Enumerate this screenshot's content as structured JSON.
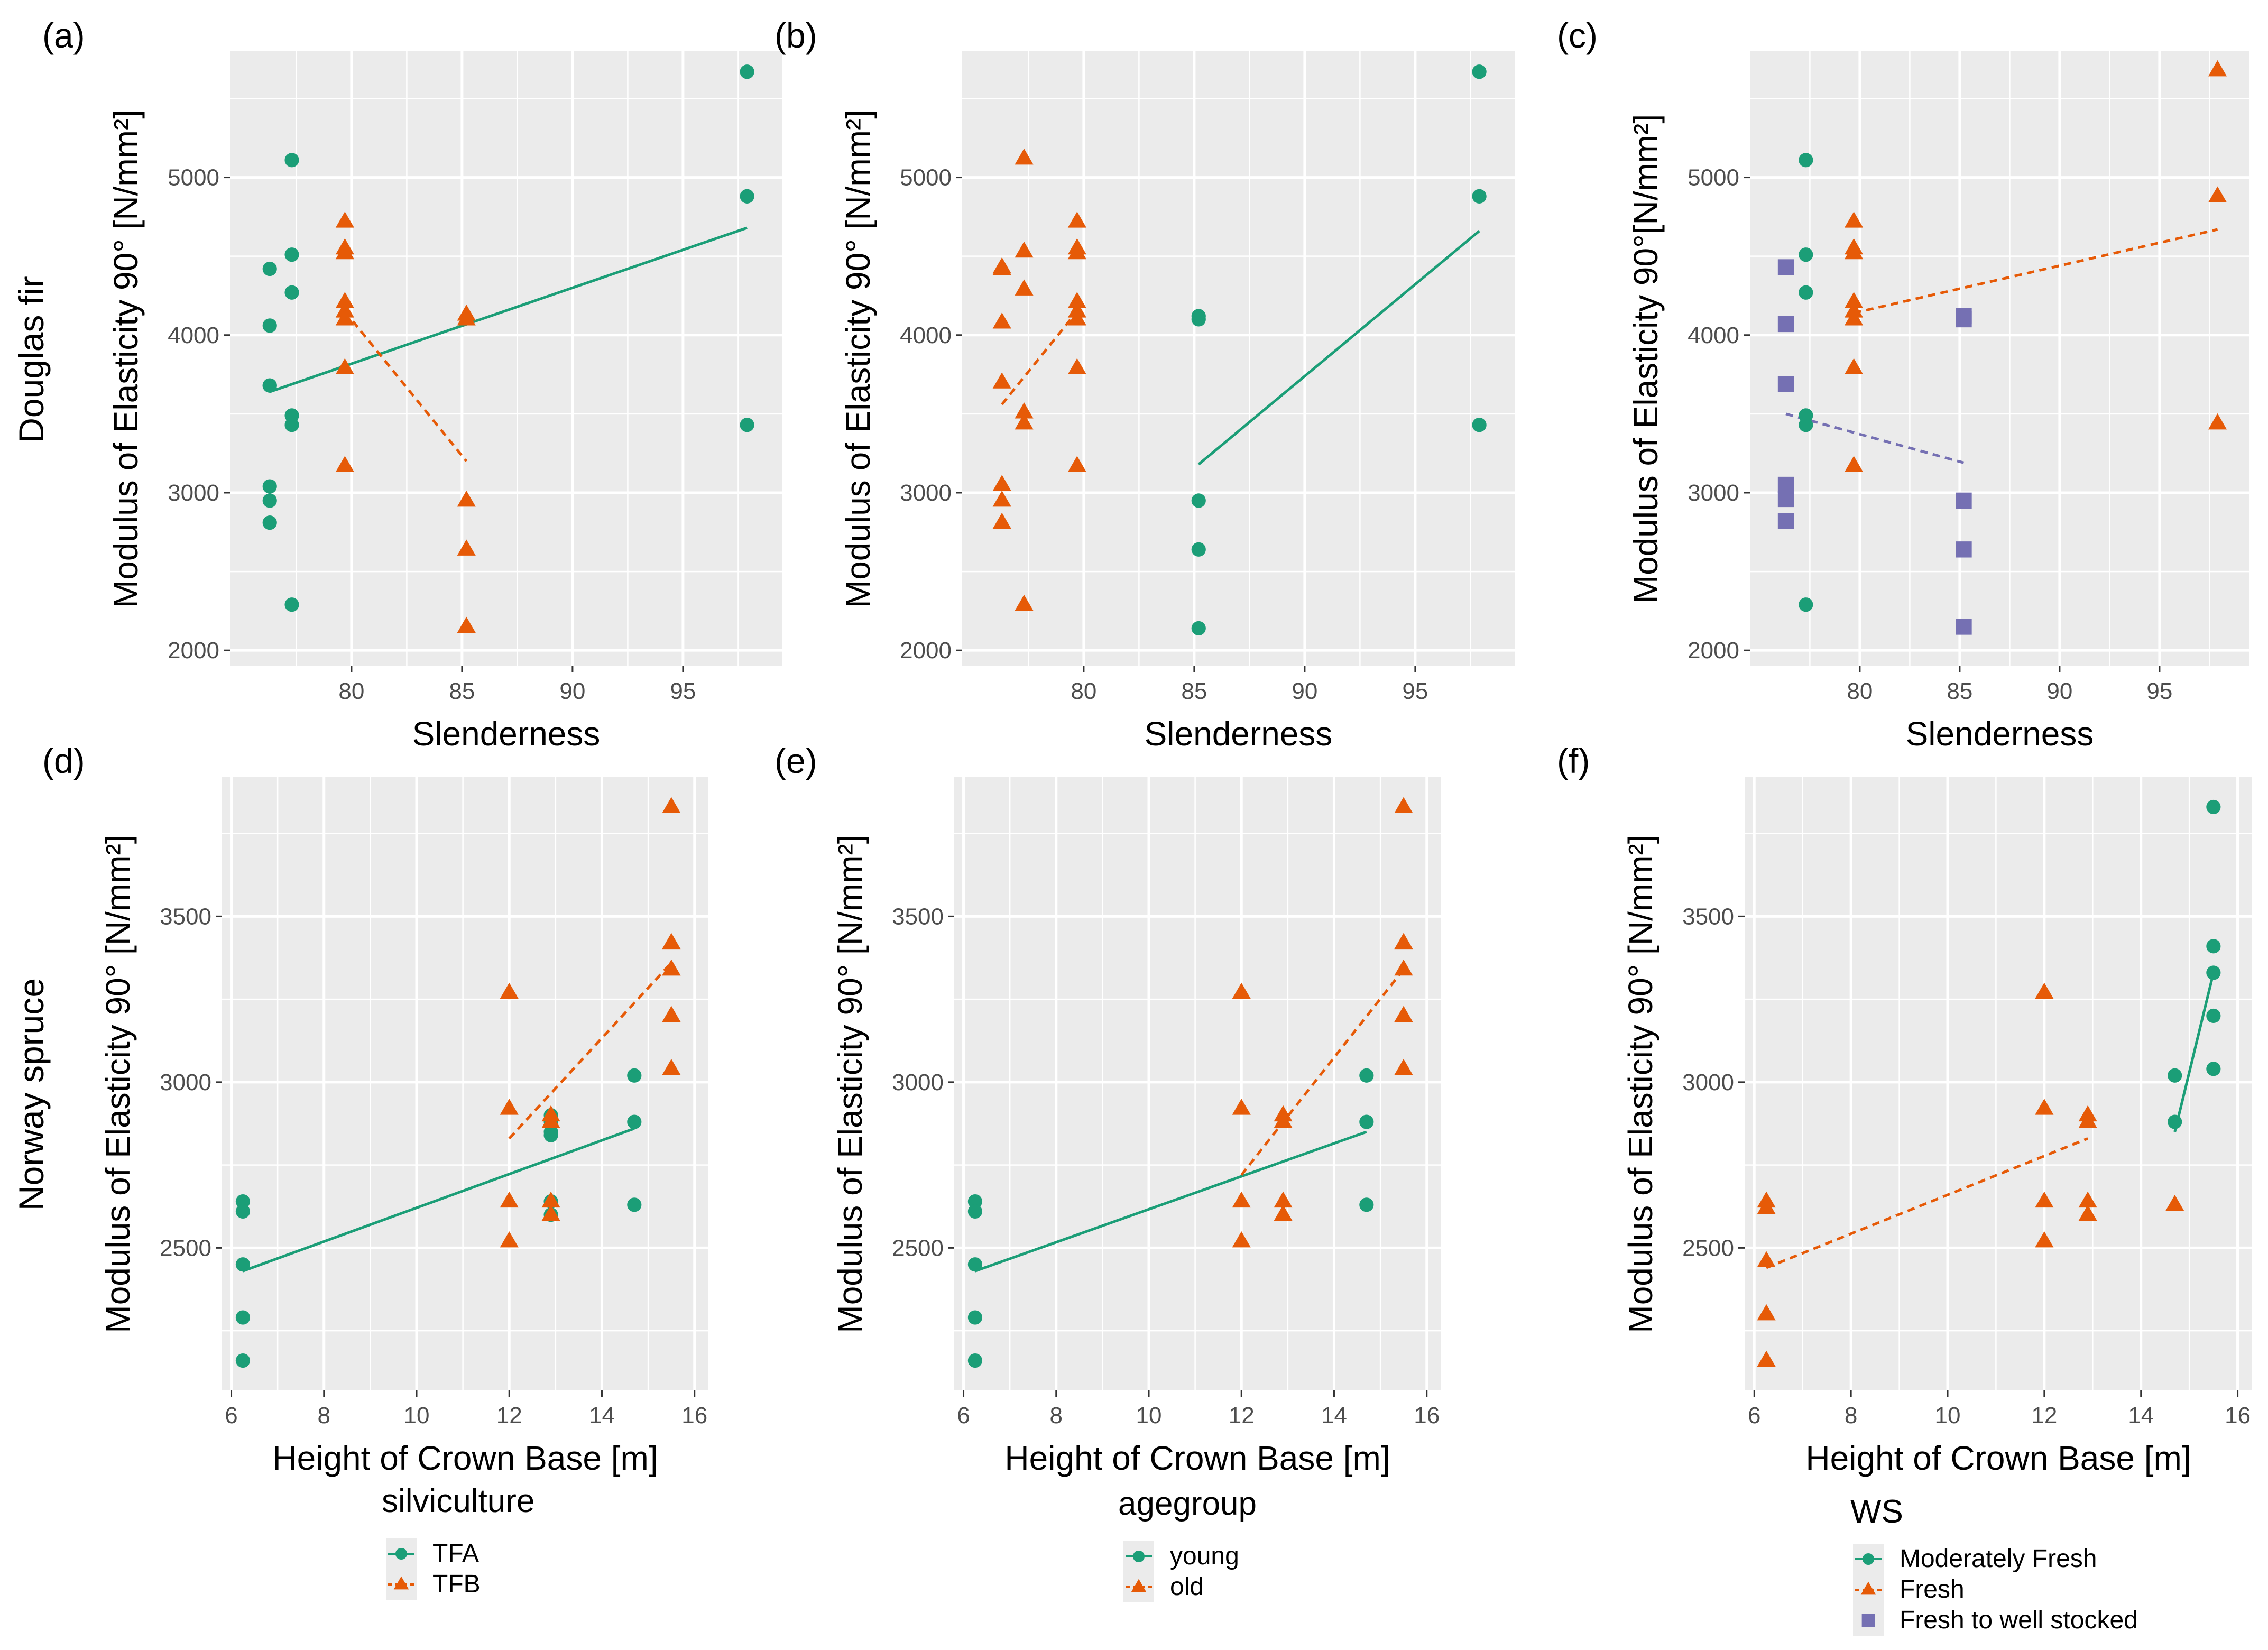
{
  "colors": {
    "teal": "#1b9e77",
    "orange": "#e65a07",
    "purple": "#7570b3"
  },
  "row_labels": [
    "Douglas fir",
    "Norway spruce"
  ],
  "chart_data": [
    {
      "panel": "(a)",
      "type": "scatter",
      "xlabel": "Slenderness",
      "ylabel": "Modulus of Elasticity 90° [N/mm²]",
      "xlim": [
        74.5,
        99.5
      ],
      "ylim": [
        1900,
        5800
      ],
      "xticks": [
        80,
        85,
        90,
        95
      ],
      "yticks": [
        2000,
        3000,
        4000,
        5000
      ],
      "xticklabels": [
        "80",
        "85",
        "90",
        "95"
      ],
      "yticklabels": [
        "2000",
        "3000",
        "4000",
        "5000"
      ],
      "series": [
        {
          "name": "TFA",
          "shape": "circle",
          "line": "solid",
          "x": [
            76.3,
            76.3,
            76.3,
            76.3,
            76.3,
            76.3,
            76.3,
            77.3,
            77.3,
            77.3,
            77.3,
            77.3,
            77.3,
            97.9,
            97.9,
            97.9
          ],
          "y": [
            4420,
            4060,
            3680,
            3040,
            2950,
            2810,
            3680,
            5110,
            4510,
            4270,
            3490,
            3430,
            2290,
            5670,
            4880,
            3430
          ],
          "fit": [
            [
              76.3,
              3640
            ],
            [
              97.9,
              4680
            ]
          ]
        },
        {
          "name": "TFB",
          "shape": "triangle",
          "line": "dashed",
          "x": [
            79.7,
            79.7,
            79.7,
            79.7,
            79.7,
            79.7,
            79.7,
            79.7,
            85.2,
            85.2,
            85.2,
            85.2,
            85.2
          ],
          "y": [
            4720,
            4550,
            4520,
            4210,
            4150,
            4100,
            3790,
            3170,
            4130,
            4100,
            2950,
            2640,
            2150
          ],
          "fit": [
            [
              79.7,
              4150
            ],
            [
              85.2,
              3200
            ]
          ]
        }
      ]
    },
    {
      "panel": "(b)",
      "type": "scatter",
      "xlabel": "Slenderness",
      "ylabel": "Modulus of Elasticity 90° [N/mm²]",
      "xlim": [
        74.5,
        99.5
      ],
      "ylim": [
        1900,
        5800
      ],
      "xticks": [
        80,
        85,
        90,
        95
      ],
      "yticks": [
        2000,
        3000,
        4000,
        5000
      ],
      "xticklabels": [
        "80",
        "85",
        "90",
        "95"
      ],
      "yticklabels": [
        "2000",
        "3000",
        "4000",
        "5000"
      ],
      "series": [
        {
          "name": "young",
          "shape": "circle",
          "line": "solid",
          "x": [
            85.2,
            85.2,
            85.2,
            85.2,
            85.2,
            97.9,
            97.9,
            97.9
          ],
          "y": [
            4120,
            4100,
            2950,
            2640,
            2140,
            5670,
            4880,
            3430
          ],
          "fit": [
            [
              85.2,
              3180
            ],
            [
              97.9,
              4660
            ]
          ]
        },
        {
          "name": "old",
          "shape": "triangle",
          "line": "dashed",
          "x": [
            76.3,
            76.3,
            76.3,
            76.3,
            76.3,
            76.3,
            76.3,
            77.3,
            77.3,
            77.3,
            77.3,
            77.3,
            77.3,
            79.7,
            79.7,
            79.7,
            79.7,
            79.7,
            79.7,
            79.7,
            79.7
          ],
          "y": [
            4430,
            4080,
            3700,
            3050,
            2950,
            2810,
            4420,
            5120,
            4530,
            4290,
            3510,
            3440,
            2290,
            4720,
            4550,
            4520,
            4210,
            4150,
            4100,
            3790,
            3170
          ],
          "fit": [
            [
              76.3,
              3560
            ],
            [
              79.7,
              4150
            ]
          ]
        }
      ]
    },
    {
      "panel": "(c)",
      "type": "scatter",
      "xlabel": "Slenderness",
      "ylabel": "Modulus of Elasticity 90°[N/mm²]",
      "xlim": [
        74.5,
        99.5
      ],
      "ylim": [
        1900,
        5800
      ],
      "xticks": [
        80,
        85,
        90,
        95
      ],
      "yticks": [
        2000,
        3000,
        4000,
        5000
      ],
      "xticklabels": [
        "80",
        "85",
        "90",
        "95"
      ],
      "yticklabels": [
        "2000",
        "3000",
        "4000",
        "5000"
      ],
      "series": [
        {
          "name": "Moderately Fresh",
          "shape": "circle",
          "line": "none",
          "x": [
            77.3,
            77.3,
            77.3,
            77.3,
            77.3,
            77.3
          ],
          "y": [
            5110,
            4510,
            4270,
            3490,
            3430,
            2290
          ],
          "fit": []
        },
        {
          "name": "Fresh",
          "shape": "triangle",
          "line": "dashed",
          "x": [
            79.7,
            79.7,
            79.7,
            79.7,
            79.7,
            79.7,
            79.7,
            79.7,
            97.9,
            97.9,
            97.9
          ],
          "y": [
            4720,
            4550,
            4520,
            4210,
            4150,
            4100,
            3790,
            3170,
            5680,
            4880,
            3440
          ],
          "fit": [
            [
              79.7,
              4140
            ],
            [
              97.9,
              4670
            ]
          ]
        },
        {
          "name": "Fresh to well stocked",
          "shape": "square",
          "line": "dashed",
          "x": [
            76.3,
            76.3,
            76.3,
            76.3,
            76.3,
            76.3,
            85.2,
            85.2,
            85.2,
            85.2,
            85.2
          ],
          "y": [
            4430,
            4070,
            3690,
            3050,
            2960,
            2820,
            4120,
            4100,
            2950,
            2640,
            2150
          ],
          "fit": [
            [
              76.3,
              3500
            ],
            [
              85.2,
              3190
            ]
          ]
        }
      ]
    },
    {
      "panel": "(d)",
      "type": "scatter",
      "xlabel": "Height of Crown Base [m]",
      "ylabel": "Modulus of Elasticity 90° [N/mm²]",
      "xlim": [
        5.8,
        16.3
      ],
      "ylim": [
        2070,
        3920
      ],
      "xticks": [
        6,
        8,
        10,
        12,
        14,
        16
      ],
      "yticks": [
        2500,
        3000,
        3500
      ],
      "xticklabels": [
        "6",
        "8",
        "10",
        "12",
        "14",
        "16"
      ],
      "yticklabels": [
        "2500",
        "3000",
        "3500"
      ],
      "legend": {
        "title": "silviculture",
        "items": [
          "TFA",
          "TFB"
        ]
      },
      "series": [
        {
          "name": "TFA",
          "shape": "circle",
          "line": "solid",
          "x": [
            6.25,
            6.25,
            6.25,
            6.25,
            6.25,
            12.9,
            12.9,
            12.9,
            12.9,
            12.9,
            12.9,
            14.7,
            14.7,
            14.7
          ],
          "y": [
            2640,
            2610,
            2450,
            2290,
            2160,
            2900,
            2880,
            2840,
            2640,
            2600,
            2850,
            3020,
            2880,
            2630
          ],
          "fit": [
            [
              6.25,
              2430
            ],
            [
              14.7,
              2860
            ]
          ]
        },
        {
          "name": "TFB",
          "shape": "triangle",
          "line": "dashed",
          "x": [
            12.0,
            12.0,
            12.0,
            12.0,
            12.9,
            12.9,
            12.9,
            12.9,
            15.5,
            15.5,
            15.5,
            15.5,
            15.5,
            15.5
          ],
          "y": [
            3270,
            2920,
            2640,
            2520,
            2900,
            2880,
            2640,
            2600,
            3830,
            3420,
            3340,
            3200,
            3040,
            3340
          ],
          "fit": [
            [
              12.0,
              2830
            ],
            [
              15.5,
              3360
            ]
          ]
        }
      ]
    },
    {
      "panel": "(e)",
      "type": "scatter",
      "xlabel": "Height of Crown Base [m]",
      "ylabel": "Modulus of Elasticity 90° [N/mm²]",
      "xlim": [
        5.8,
        16.3
      ],
      "ylim": [
        2070,
        3920
      ],
      "xticks": [
        6,
        8,
        10,
        12,
        14,
        16
      ],
      "yticks": [
        2500,
        3000,
        3500
      ],
      "xticklabels": [
        "6",
        "8",
        "10",
        "12",
        "14",
        "16"
      ],
      "yticklabels": [
        "2500",
        "3000",
        "3500"
      ],
      "legend": {
        "title": "agegroup",
        "items": [
          "young",
          "old"
        ]
      },
      "series": [
        {
          "name": "young",
          "shape": "circle",
          "line": "solid",
          "x": [
            6.25,
            6.25,
            6.25,
            6.25,
            6.25,
            14.7,
            14.7,
            14.7
          ],
          "y": [
            2640,
            2610,
            2450,
            2290,
            2160,
            3020,
            2880,
            2630
          ],
          "fit": [
            [
              6.25,
              2430
            ],
            [
              14.7,
              2850
            ]
          ]
        },
        {
          "name": "old",
          "shape": "triangle",
          "line": "dashed",
          "x": [
            12.0,
            12.0,
            12.0,
            12.0,
            12.9,
            12.9,
            12.9,
            12.9,
            15.5,
            15.5,
            15.5,
            15.5,
            15.5
          ],
          "y": [
            3270,
            2920,
            2640,
            2520,
            2900,
            2880,
            2640,
            2600,
            3830,
            3420,
            3340,
            3200,
            3040
          ],
          "fit": [
            [
              12.0,
              2720
            ],
            [
              15.5,
              3340
            ]
          ]
        }
      ]
    },
    {
      "panel": "(f)",
      "type": "scatter",
      "xlabel": "Height of Crown Base [m]",
      "ylabel": "Modulus of Elasticity 90° [N/mm²]",
      "xlim": [
        5.8,
        16.3
      ],
      "ylim": [
        2070,
        3920
      ],
      "xticks": [
        6,
        8,
        10,
        12,
        14,
        16
      ],
      "yticks": [
        2500,
        3000,
        3500
      ],
      "xticklabels": [
        "6",
        "8",
        "10",
        "12",
        "14",
        "16"
      ],
      "yticklabels": [
        "2500",
        "3000",
        "3500"
      ],
      "legend": {
        "title": "WS",
        "items": [
          "Moderately Fresh",
          "Fresh",
          "Fresh to well stocked"
        ]
      },
      "series": [
        {
          "name": "Moderately Fresh",
          "shape": "circle",
          "line": "solid",
          "x": [
            14.7,
            14.7,
            15.5,
            15.5,
            15.5,
            15.5,
            15.5
          ],
          "y": [
            3020,
            2880,
            3830,
            3410,
            3330,
            3200,
            3040
          ],
          "fit": [
            [
              14.7,
              2850
            ],
            [
              15.5,
              3330
            ]
          ]
        },
        {
          "name": "Fresh",
          "shape": "triangle",
          "line": "dashed",
          "x": [
            6.25,
            6.25,
            6.25,
            6.25,
            6.25,
            12.0,
            12.0,
            12.0,
            12.0,
            12.9,
            12.9,
            12.9,
            12.9,
            14.7
          ],
          "y": [
            2640,
            2620,
            2460,
            2300,
            2160,
            3270,
            2920,
            2640,
            2520,
            2900,
            2880,
            2640,
            2600,
            2630
          ],
          "fit": [
            [
              6.25,
              2440
            ],
            [
              12.9,
              2830
            ]
          ]
        },
        {
          "name": "Fresh to well stocked",
          "shape": "square",
          "line": "none",
          "x": [],
          "y": [],
          "fit": []
        }
      ]
    }
  ]
}
